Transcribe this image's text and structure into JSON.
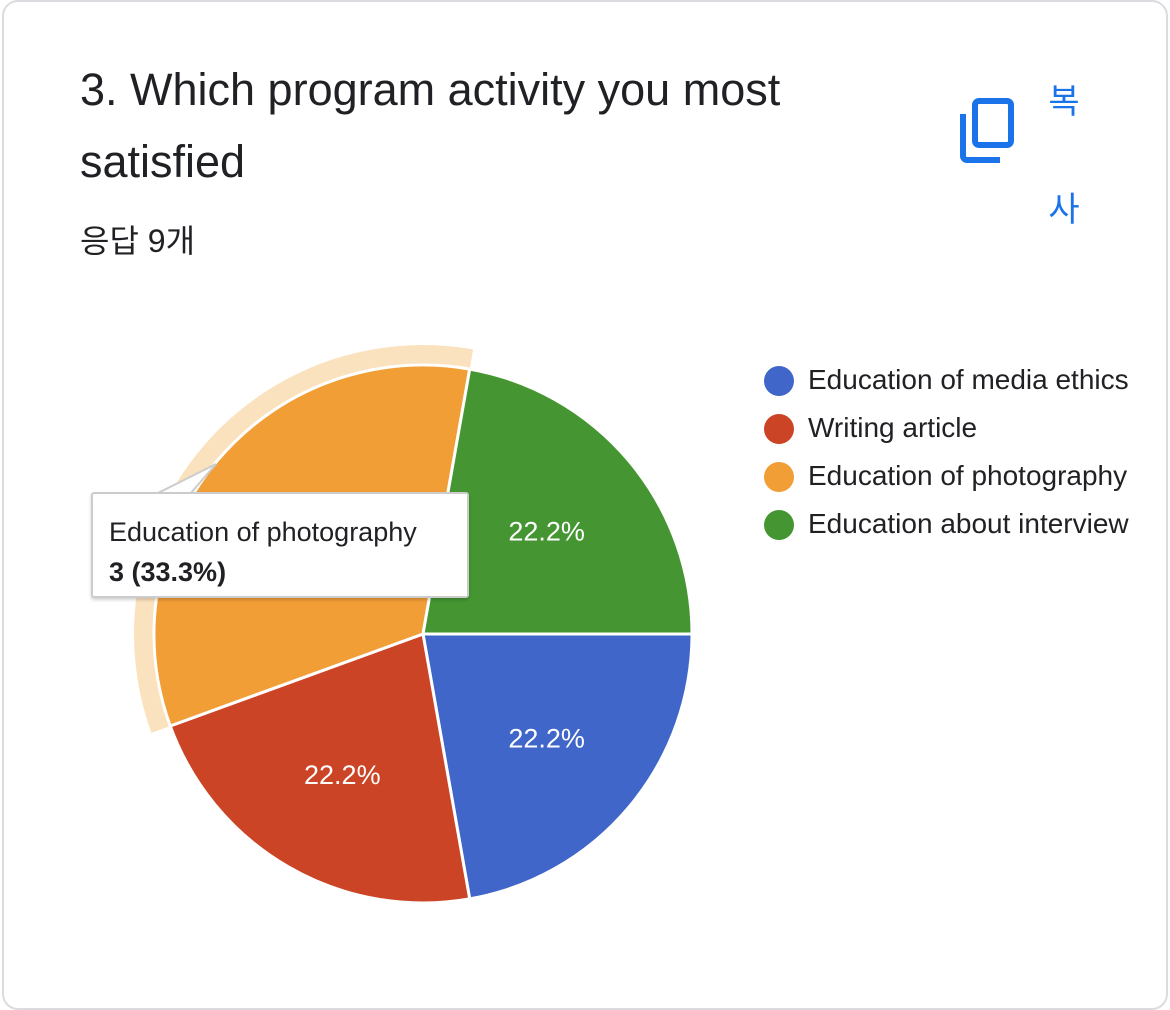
{
  "question": {
    "title": "3. Which program activity you most satisfied",
    "response_count": "응답 9개"
  },
  "copy_button": {
    "label": "복사",
    "icon": "copy-icon",
    "color": "#1a73e8"
  },
  "chart_data": {
    "type": "pie",
    "categories": [
      "Education of media ethics",
      "Writing article",
      "Education of photography",
      "Education about interview"
    ],
    "values": [
      2,
      2,
      3,
      2
    ],
    "percent_labels": [
      "22.2%",
      "22.2%",
      "",
      "22.2%"
    ],
    "colors": [
      "#3f66c8",
      "#cc4426",
      "#f19e37",
      "#459632"
    ],
    "highlighted_index": 2,
    "highlight_color": "#fbe2be",
    "legend": "right"
  },
  "tooltip": {
    "label": "Education of photography",
    "value": "3 (33.3%)"
  }
}
